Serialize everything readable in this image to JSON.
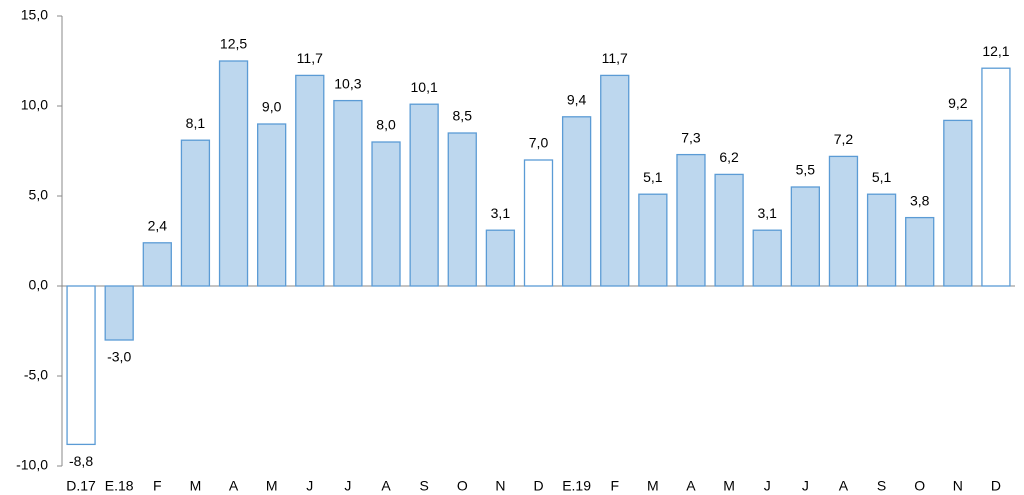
{
  "chart_data": {
    "type": "bar",
    "categories": [
      "D.17",
      "E.18",
      "F",
      "M",
      "A",
      "M",
      "J",
      "J",
      "A",
      "S",
      "O",
      "N",
      "D",
      "E.19",
      "F",
      "M",
      "A",
      "M",
      "J",
      "J",
      "A",
      "S",
      "O",
      "N",
      "D"
    ],
    "values": [
      -8.8,
      -3.0,
      2.4,
      8.1,
      12.5,
      9.0,
      11.7,
      10.3,
      8.0,
      10.1,
      8.5,
      3.1,
      7.0,
      9.4,
      11.7,
      5.1,
      7.3,
      6.2,
      3.1,
      5.5,
      7.2,
      5.1,
      3.8,
      9.2,
      12.1
    ],
    "value_labels": [
      "-8,8",
      "-3,0",
      "2,4",
      "8,1",
      "12,5",
      "9,0",
      "11,7",
      "10,3",
      "8,0",
      "10,1",
      "8,5",
      "3,1",
      "7,0",
      "9,4",
      "11,7",
      "5,1",
      "7,3",
      "6,2",
      "3,1",
      "5,5",
      "7,2",
      "5,1",
      "3,8",
      "9,2",
      "12,1"
    ],
    "colors": [
      "#ffffff",
      "#bdd7ee",
      "#bdd7ee",
      "#bdd7ee",
      "#bdd7ee",
      "#bdd7ee",
      "#bdd7ee",
      "#bdd7ee",
      "#bdd7ee",
      "#bdd7ee",
      "#bdd7ee",
      "#bdd7ee",
      "#ffffff",
      "#bdd7ee",
      "#bdd7ee",
      "#bdd7ee",
      "#bdd7ee",
      "#bdd7ee",
      "#bdd7ee",
      "#bdd7ee",
      "#bdd7ee",
      "#bdd7ee",
      "#bdd7ee",
      "#bdd7ee",
      "#ffffff"
    ],
    "edge_color": "#5b9bd5",
    "ylim": [
      -10,
      15
    ],
    "yticks": [
      {
        "value": -10,
        "label": "-10,0"
      },
      {
        "value": -5,
        "label": "-5,0"
      },
      {
        "value": 0,
        "label": "0,0"
      },
      {
        "value": 5,
        "label": "5,0"
      },
      {
        "value": 10,
        "label": "10,0"
      },
      {
        "value": 15,
        "label": "15,0"
      }
    ],
    "grid": false
  }
}
